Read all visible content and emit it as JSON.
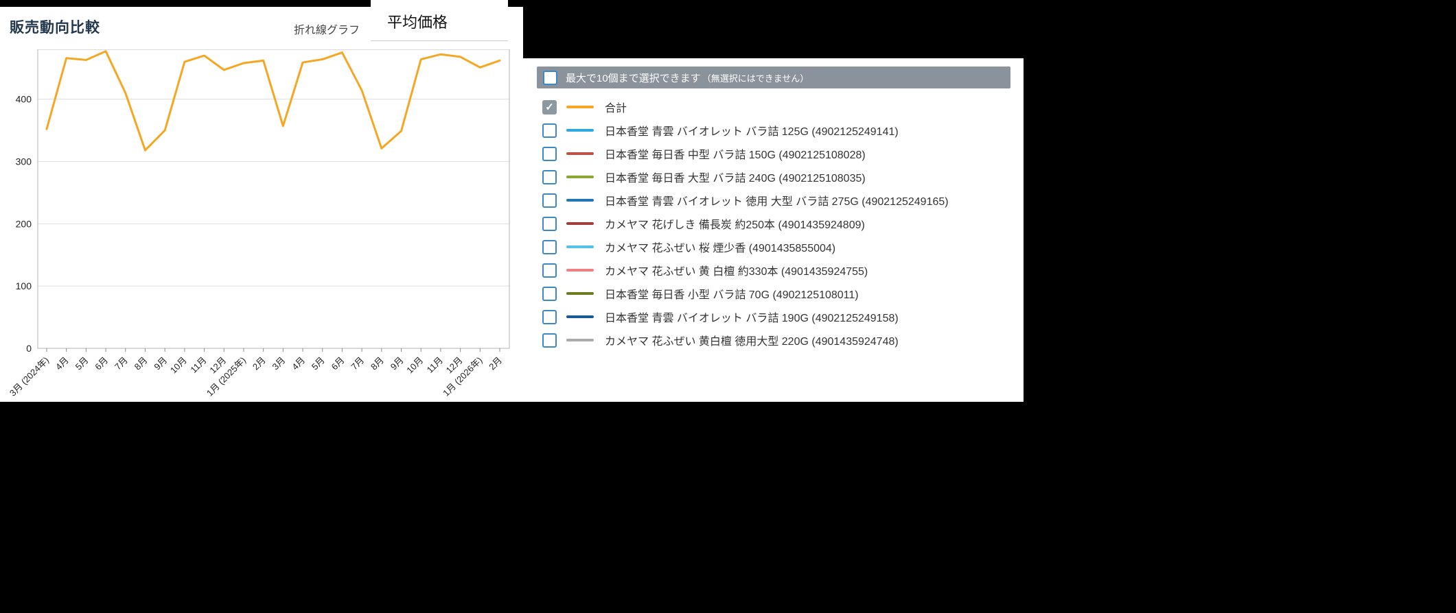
{
  "page": {
    "title": "販売動向比較",
    "chart_type_label": "折れ線グラフ",
    "metric_dropdown_value": "平均価格"
  },
  "legend": {
    "notice": "最大で10個まで選択できます",
    "notice_sub": "（無選択にはできません）",
    "items": [
      {
        "label": "合計",
        "color": "#F5A623",
        "checked": true
      },
      {
        "label": "日本香堂 青雲 バイオレット バラ詰 125G (4902125249141)",
        "color": "#2EA8E0",
        "checked": false
      },
      {
        "label": "日本香堂 毎日香 中型 バラ詰 150G (4902125108028)",
        "color": "#C0504D",
        "checked": false
      },
      {
        "label": "日本香堂 毎日香 大型 バラ詰 240G (4902125108035)",
        "color": "#8CA734",
        "checked": false
      },
      {
        "label": "日本香堂 青雲 バイオレット 徳用 大型 バラ詰 275G (4902125249165)",
        "color": "#1F78B4",
        "checked": false
      },
      {
        "label": "カメヤマ 花げしき 備長炭 約250本 (4901435924809)",
        "color": "#A33E3E",
        "checked": false
      },
      {
        "label": "カメヤマ 花ふぜい 桜 煙少香 (4901435855004)",
        "color": "#55C1E9",
        "checked": false
      },
      {
        "label": "カメヤマ 花ふぜい 黄 白檀 約330本 (4901435924755)",
        "color": "#F08080",
        "checked": false
      },
      {
        "label": "日本香堂 毎日香 小型 バラ詰 70G (4902125108011)",
        "color": "#6E7B20",
        "checked": false
      },
      {
        "label": "日本香堂 青雲 バイオレット バラ詰 190G (4902125249158)",
        "color": "#1A5A96",
        "checked": false
      },
      {
        "label": "カメヤマ 花ふぜい 黄白檀 徳用大型 220G (4901435924748)",
        "color": "#ABABAB",
        "checked": false
      }
    ]
  },
  "chart_data": {
    "type": "line",
    "title": "販売動向比較",
    "xlabel": "",
    "ylabel": "",
    "x": [
      "3月 (2024年)",
      "4月",
      "5月",
      "6月",
      "7月",
      "8月",
      "9月",
      "10月",
      "11月",
      "12月",
      "1月 (2025年)",
      "2月",
      "3月",
      "4月",
      "5月",
      "6月",
      "7月",
      "8月",
      "9月",
      "10月",
      "11月",
      "12月",
      "1月 (2026年)",
      "2月"
    ],
    "series": [
      {
        "name": "合計",
        "color": "#F5A623",
        "values": [
          352,
          466,
          463,
          477,
          410,
          318,
          350,
          460,
          470,
          447,
          458,
          462,
          357,
          459,
          464,
          475,
          414,
          321,
          349,
          464,
          472,
          468,
          451,
          462
        ]
      }
    ],
    "ylim": [
      0,
      480
    ],
    "yticks": [
      0,
      100,
      200,
      300,
      400
    ],
    "grid": true,
    "legend_position": "right"
  }
}
